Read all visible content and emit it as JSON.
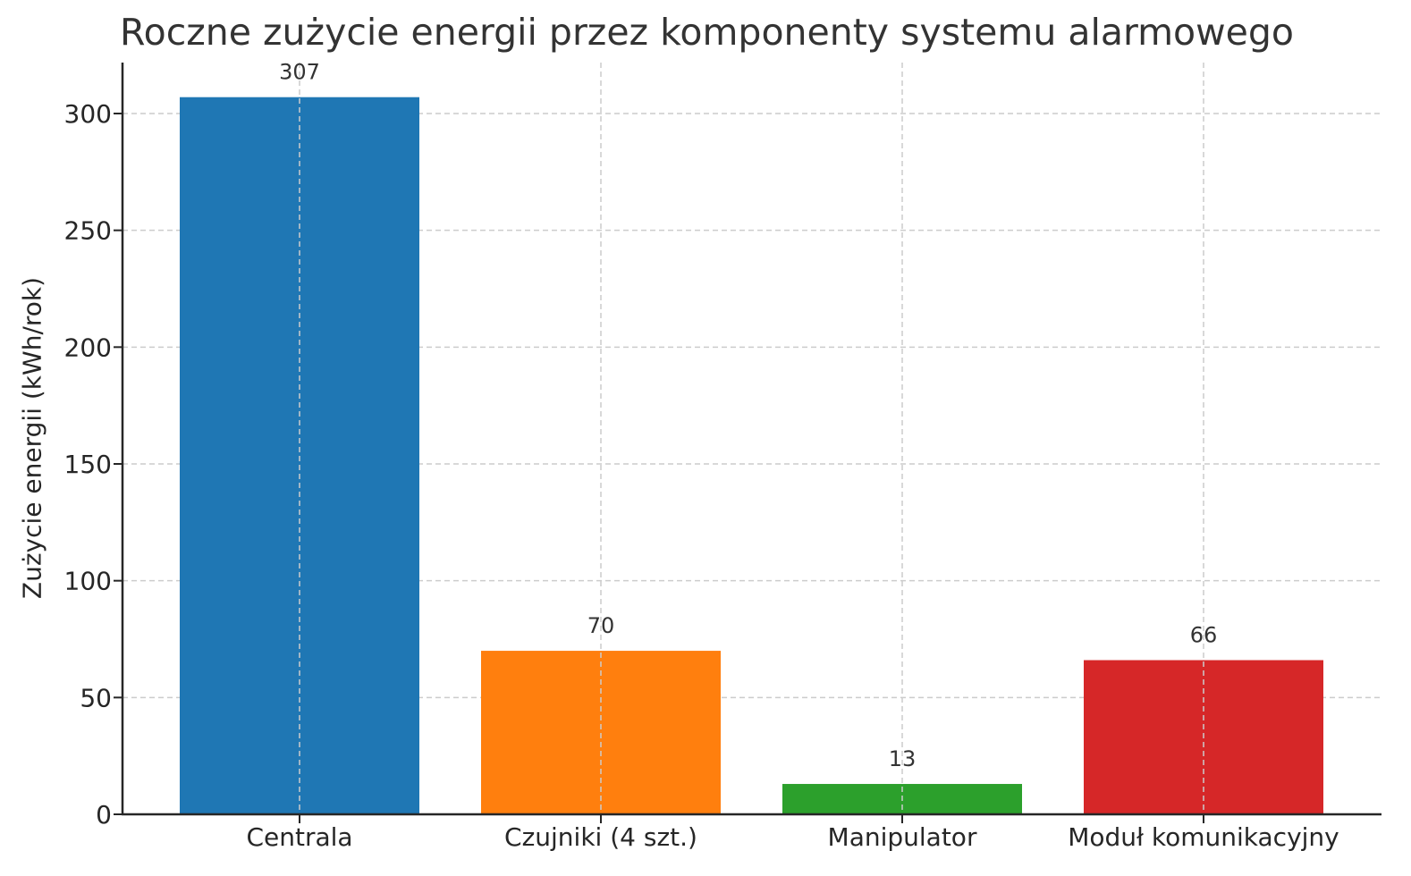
{
  "chart_data": {
    "type": "bar",
    "title": "Roczne zużycie energii przez komponenty systemu alarmowego",
    "xlabel": "",
    "ylabel": "Zużycie energii (kWh/rok)",
    "categories": [
      "Centrala",
      "Czujniki (4 szt.)",
      "Manipulator",
      "Moduł komunikacyjny"
    ],
    "values": [
      307,
      70,
      13,
      66
    ],
    "value_labels": [
      "307",
      "70",
      "13",
      "66"
    ],
    "colors": [
      "#1f77b4",
      "#ff7f0e",
      "#2ca02c",
      "#d62728"
    ],
    "ylim": [
      0,
      322
    ],
    "yticks": [
      0,
      50,
      100,
      150,
      200,
      250,
      300
    ],
    "grid": true,
    "legend": null
  }
}
